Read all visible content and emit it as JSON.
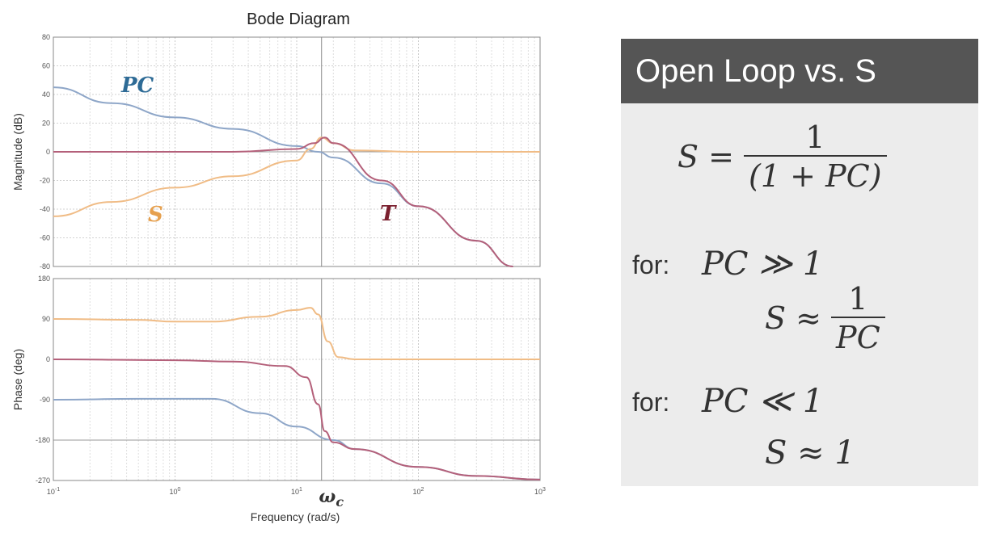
{
  "chart_data": [
    {
      "type": "line",
      "title": "Bode Diagram",
      "xlabel": "Frequency  (rad/s)",
      "ylabel": "Magnitude (dB)",
      "xscale": "log",
      "xlim": [
        0.1,
        1000
      ],
      "ylim": [
        -80,
        80
      ],
      "x_ticks": [
        "10^-1",
        "10^0",
        "10^1",
        "10^2",
        "10^3"
      ],
      "y_ticks": [
        "80",
        "60",
        "40",
        "20",
        "0",
        "-20",
        "-40",
        "-60",
        "-80"
      ],
      "grid": true,
      "series": [
        {
          "name": "PC",
          "color": "#8ea6c8",
          "x": [
            0.1,
            0.3,
            1,
            3,
            10,
            15,
            20,
            50,
            100,
            300,
            600
          ],
          "y": [
            45,
            34,
            24,
            16,
            4,
            0,
            -4,
            -22,
            -38,
            -62,
            -80
          ]
        },
        {
          "name": "S",
          "color": "#f0bc86",
          "x": [
            0.1,
            0.3,
            1,
            3,
            10,
            13,
            16,
            20,
            30,
            100,
            1000
          ],
          "y": [
            -45,
            -35,
            -25,
            -17,
            -6,
            2,
            10,
            6,
            1,
            0,
            0
          ]
        },
        {
          "name": "T",
          "color": "#b4607a",
          "x": [
            0.1,
            1,
            3,
            10,
            14,
            17,
            20,
            50,
            100,
            300,
            600
          ],
          "y": [
            0,
            0,
            0,
            2,
            6,
            10,
            6,
            -20,
            -38,
            -62,
            -80
          ]
        }
      ]
    },
    {
      "type": "line",
      "xlabel": "Frequency  (rad/s)",
      "ylabel": "Phase (deg)",
      "xscale": "log",
      "xlim": [
        0.1,
        1000
      ],
      "ylim": [
        -270,
        180
      ],
      "y_ticks": [
        "180",
        "90",
        "0",
        "-90",
        "-180",
        "-270"
      ],
      "grid": true,
      "series": [
        {
          "name": "PC",
          "color": "#8ea6c8",
          "x": [
            0.1,
            0.5,
            2,
            5,
            10,
            20,
            30,
            100,
            300,
            1000
          ],
          "y": [
            -90,
            -88,
            -88,
            -120,
            -150,
            -180,
            -200,
            -240,
            -260,
            -268
          ]
        },
        {
          "name": "S",
          "color": "#f0bc86",
          "x": [
            0.1,
            0.5,
            1,
            2,
            5,
            10,
            13,
            15,
            18,
            22,
            30,
            100,
            1000
          ],
          "y": [
            90,
            88,
            84,
            84,
            95,
            110,
            115,
            100,
            40,
            5,
            0,
            0,
            0
          ]
        },
        {
          "name": "T",
          "color": "#b4607a",
          "x": [
            0.1,
            1,
            3,
            8,
            12,
            15,
            17,
            20,
            30,
            100,
            300,
            1000
          ],
          "y": [
            0,
            -2,
            -5,
            -15,
            -40,
            -100,
            -160,
            -185,
            -200,
            -240,
            -260,
            -268
          ]
        }
      ]
    }
  ],
  "annotations": {
    "pc_label": "PC",
    "s_label": "S",
    "t_label": "T",
    "omega": "ω",
    "omega_sub": "c"
  },
  "panel": {
    "title": "Open Loop vs. S",
    "eq1_lhs": "S =",
    "eq1_num": "1",
    "eq1_den": "(1 + PC)",
    "for1": "for:",
    "cond1": "PC ≫ 1",
    "eq2_lhs": "S ≈",
    "eq2_num": "1",
    "eq2_den": "PC",
    "for2": "for:",
    "cond2": "PC ≪ 1",
    "eq3": "S ≈ 1"
  }
}
